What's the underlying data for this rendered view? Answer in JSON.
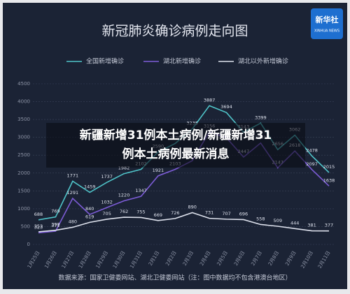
{
  "chart_data": {
    "type": "line",
    "title": "新冠肺炎确诊病例走向图",
    "categories": [
      "1月25日",
      "1月26日",
      "1月27日",
      "1月28日",
      "1月29日",
      "1月30日",
      "1月31日",
      "2月1日",
      "2月2日",
      "2月3日",
      "2月4日",
      "2月5日",
      "2月6日",
      "2月7日",
      "2月8日",
      "2月9日",
      "2月10日",
      "2月11日"
    ],
    "series": [
      {
        "name": "全国新增确诊",
        "color": "#4fc3c8",
        "values": [
          688,
          769,
          1771,
          1459,
          1737,
          1982,
          2102,
          2590,
          2829,
          3235,
          3887,
          3694,
          3143,
          3399,
          2656,
          3062,
          2478,
          2015
        ]
      },
      {
        "name": "湖北新增确诊",
        "color": "#7c5cd6",
        "values": [
          323,
          371,
          1291,
          840,
          1032,
          1220,
          1347,
          1921,
          2103,
          2345,
          3156,
          2987,
          2447,
          2841,
          2147,
          2618,
          2097,
          1638
        ]
      },
      {
        "name": "湖北以外新增确诊",
        "color": "#dde1ec",
        "values": [
          353,
          398,
          480,
          619,
          705,
          762,
          755,
          669,
          726,
          890,
          731,
          707,
          696,
          558,
          509,
          444,
          381,
          377
        ]
      }
    ],
    "ylim": [
      0,
      4500
    ],
    "yticks": [
      0,
      500,
      1000,
      1500,
      2000,
      2500,
      3000,
      3500,
      4000,
      4500
    ],
    "grid": true,
    "source": "数据来源：国家卫健委网站、湖北卫健委网站（注：图中数据均不包含港澳台地区）"
  },
  "logo": {
    "name": "新华社",
    "sub": "XINHUA NEWS"
  },
  "overlay": {
    "lines": [
      "新疆新增31例本土病例/新疆新增31",
      "例本土病例最新消息"
    ]
  }
}
